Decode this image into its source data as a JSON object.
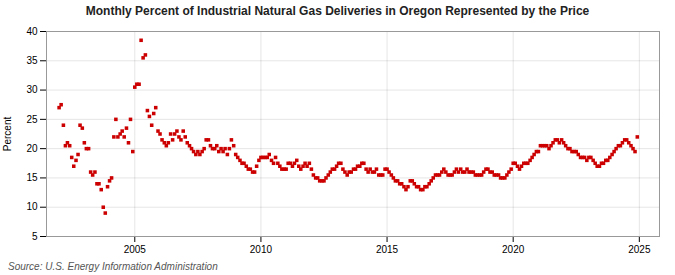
{
  "chart_data": {
    "type": "scatter",
    "title": "Monthly Percent of Industrial Natural Gas Deliveries in Oregon Represented by the Price",
    "ylabel": "Percent",
    "source": "Source: U.S. Energy Information Administration",
    "color": "#cc0000",
    "marker": "square",
    "grid": true,
    "xlim": [
      2001.5,
      2025.8
    ],
    "xticks": [
      2005,
      2010,
      2015,
      2020,
      2025
    ],
    "ylim": [
      5,
      40
    ],
    "yticks": [
      5,
      10,
      15,
      20,
      25,
      30,
      35,
      40
    ],
    "x": [
      2002.0,
      2002.08,
      2002.17,
      2002.25,
      2002.33,
      2002.42,
      2002.5,
      2002.58,
      2002.67,
      2002.75,
      2002.83,
      2002.92,
      2003.0,
      2003.08,
      2003.17,
      2003.25,
      2003.33,
      2003.42,
      2003.5,
      2003.58,
      2003.67,
      2003.75,
      2003.83,
      2003.92,
      2004.0,
      2004.08,
      2004.17,
      2004.25,
      2004.33,
      2004.42,
      2004.5,
      2004.58,
      2004.67,
      2004.75,
      2004.83,
      2004.92,
      2005.0,
      2005.08,
      2005.17,
      2005.25,
      2005.33,
      2005.42,
      2005.5,
      2005.58,
      2005.67,
      2005.75,
      2005.83,
      2005.92,
      2006.0,
      2006.08,
      2006.17,
      2006.25,
      2006.33,
      2006.42,
      2006.5,
      2006.58,
      2006.67,
      2006.75,
      2006.83,
      2006.92,
      2007.0,
      2007.08,
      2007.17,
      2007.25,
      2007.33,
      2007.42,
      2007.5,
      2007.58,
      2007.67,
      2007.75,
      2007.83,
      2007.92,
      2008.0,
      2008.08,
      2008.17,
      2008.25,
      2008.33,
      2008.42,
      2008.5,
      2008.58,
      2008.67,
      2008.75,
      2008.83,
      2008.92,
      2009.0,
      2009.08,
      2009.17,
      2009.25,
      2009.33,
      2009.42,
      2009.5,
      2009.58,
      2009.67,
      2009.75,
      2009.83,
      2009.92,
      2010.0,
      2010.08,
      2010.17,
      2010.25,
      2010.33,
      2010.42,
      2010.5,
      2010.58,
      2010.67,
      2010.75,
      2010.83,
      2010.92,
      2011.0,
      2011.08,
      2011.17,
      2011.25,
      2011.33,
      2011.42,
      2011.5,
      2011.58,
      2011.67,
      2011.75,
      2011.83,
      2011.92,
      2012.0,
      2012.08,
      2012.17,
      2012.25,
      2012.33,
      2012.42,
      2012.5,
      2012.58,
      2012.67,
      2012.75,
      2012.83,
      2012.92,
      2013.0,
      2013.08,
      2013.17,
      2013.25,
      2013.33,
      2013.42,
      2013.5,
      2013.58,
      2013.67,
      2013.75,
      2013.83,
      2013.92,
      2014.0,
      2014.08,
      2014.17,
      2014.25,
      2014.33,
      2014.42,
      2014.5,
      2014.58,
      2014.67,
      2014.75,
      2014.83,
      2014.92,
      2015.0,
      2015.08,
      2015.17,
      2015.25,
      2015.33,
      2015.42,
      2015.5,
      2015.58,
      2015.67,
      2015.75,
      2015.83,
      2015.92,
      2016.0,
      2016.08,
      2016.17,
      2016.25,
      2016.33,
      2016.42,
      2016.5,
      2016.58,
      2016.67,
      2016.75,
      2016.83,
      2016.92,
      2017.0,
      2017.08,
      2017.17,
      2017.25,
      2017.33,
      2017.42,
      2017.5,
      2017.58,
      2017.67,
      2017.75,
      2017.83,
      2017.92,
      2018.0,
      2018.08,
      2018.17,
      2018.25,
      2018.33,
      2018.42,
      2018.5,
      2018.58,
      2018.67,
      2018.75,
      2018.83,
      2018.92,
      2019.0,
      2019.08,
      2019.17,
      2019.25,
      2019.33,
      2019.42,
      2019.5,
      2019.58,
      2019.67,
      2019.75,
      2019.83,
      2019.92,
      2020.0,
      2020.08,
      2020.17,
      2020.25,
      2020.33,
      2020.42,
      2020.5,
      2020.58,
      2020.67,
      2020.75,
      2020.83,
      2020.92,
      2021.0,
      2021.08,
      2021.17,
      2021.25,
      2021.33,
      2021.42,
      2021.5,
      2021.58,
      2021.67,
      2021.75,
      2021.83,
      2021.92,
      2022.0,
      2022.08,
      2022.17,
      2022.25,
      2022.33,
      2022.42,
      2022.5,
      2022.58,
      2022.67,
      2022.75,
      2022.83,
      2022.92,
      2023.0,
      2023.08,
      2023.17,
      2023.25,
      2023.33,
      2023.42,
      2023.5,
      2023.58,
      2023.67,
      2023.75,
      2023.83,
      2023.92,
      2024.0,
      2024.08,
      2024.17,
      2024.25,
      2024.33,
      2024.42,
      2024.5,
      2024.58,
      2024.67,
      2024.75,
      2024.83,
      2024.92
    ],
    "values": [
      27.0,
      27.5,
      24.0,
      20.5,
      21.0,
      20.5,
      18.5,
      17.0,
      18.0,
      19.0,
      24.0,
      23.5,
      21.0,
      20.0,
      20.0,
      16.0,
      15.5,
      16.0,
      14.0,
      14.0,
      13.0,
      10.0,
      9.0,
      13.5,
      14.5,
      15.0,
      22.0,
      25.0,
      22.0,
      22.5,
      23.0,
      22.0,
      23.5,
      21.0,
      25.0,
      19.5,
      30.5,
      31.0,
      31.0,
      38.5,
      35.5,
      36.0,
      26.5,
      25.5,
      24.0,
      26.0,
      27.0,
      23.0,
      22.5,
      21.5,
      21.0,
      20.5,
      21.0,
      22.5,
      21.5,
      22.5,
      23.0,
      22.0,
      21.5,
      23.0,
      22.0,
      21.0,
      20.5,
      20.0,
      19.5,
      19.0,
      19.5,
      19.0,
      19.5,
      20.0,
      21.5,
      21.5,
      20.5,
      20.0,
      20.0,
      20.5,
      19.5,
      20.0,
      19.5,
      20.0,
      19.0,
      20.0,
      21.5,
      20.5,
      19.0,
      18.5,
      18.0,
      17.5,
      17.5,
      17.0,
      16.5,
      16.5,
      16.0,
      16.0,
      17.0,
      18.0,
      18.5,
      18.5,
      18.5,
      18.5,
      19.0,
      18.0,
      17.5,
      18.5,
      17.5,
      17.0,
      16.5,
      16.5,
      16.5,
      17.5,
      17.5,
      17.0,
      17.5,
      18.0,
      17.0,
      16.5,
      17.0,
      17.5,
      17.0,
      17.5,
      16.5,
      15.5,
      15.0,
      15.0,
      14.5,
      14.5,
      14.5,
      15.0,
      15.5,
      16.0,
      16.5,
      16.5,
      17.0,
      17.5,
      17.5,
      16.5,
      16.0,
      15.5,
      16.0,
      16.0,
      16.5,
      16.5,
      17.0,
      17.0,
      17.5,
      17.5,
      16.5,
      16.0,
      16.5,
      16.0,
      16.0,
      16.5,
      15.5,
      15.5,
      15.5,
      16.5,
      16.5,
      16.0,
      15.5,
      15.0,
      14.5,
      14.5,
      14.0,
      14.0,
      13.5,
      13.0,
      13.5,
      14.5,
      14.5,
      14.0,
      13.5,
      13.5,
      13.0,
      13.0,
      13.5,
      13.5,
      14.0,
      14.5,
      15.0,
      15.5,
      15.5,
      15.5,
      16.0,
      16.5,
      16.0,
      15.5,
      15.5,
      15.5,
      16.0,
      16.5,
      16.0,
      16.5,
      16.0,
      16.0,
      16.5,
      16.0,
      16.0,
      16.0,
      15.5,
      15.5,
      15.5,
      15.5,
      16.0,
      16.5,
      16.5,
      16.0,
      16.0,
      15.5,
      15.5,
      15.5,
      15.0,
      15.0,
      15.0,
      15.5,
      16.0,
      16.5,
      17.5,
      17.5,
      17.0,
      16.5,
      17.0,
      17.5,
      17.5,
      17.5,
      18.0,
      18.5,
      19.0,
      19.5,
      19.5,
      20.5,
      20.5,
      20.5,
      20.5,
      20.0,
      20.5,
      21.0,
      21.5,
      21.5,
      21.0,
      21.5,
      21.0,
      20.5,
      20.0,
      20.0,
      19.5,
      19.5,
      19.5,
      19.0,
      18.5,
      18.5,
      18.5,
      18.0,
      18.5,
      18.5,
      18.0,
      17.5,
      17.0,
      17.0,
      17.5,
      17.5,
      18.0,
      18.0,
      18.5,
      19.0,
      19.5,
      20.0,
      20.5,
      20.5,
      21.0,
      21.5,
      21.5,
      21.0,
      20.5,
      20.0,
      19.5,
      22.0
    ]
  }
}
